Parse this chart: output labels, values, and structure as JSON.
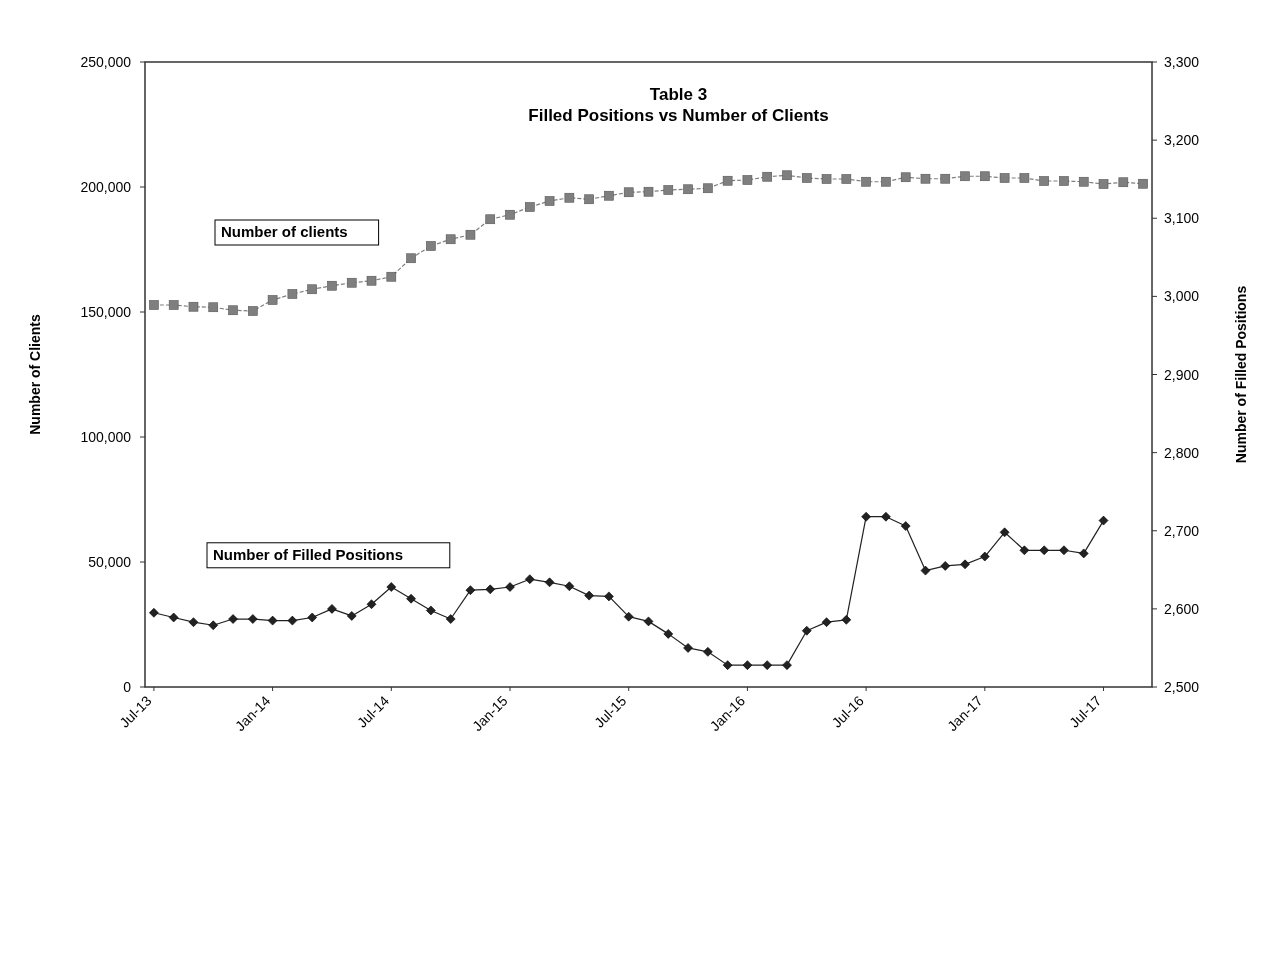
{
  "chart_data": {
    "type": "line",
    "title": "Table 3",
    "subtitle": "Filled Positions vs Number of Clients",
    "ylabel": "Number of Clients",
    "y2label": "Number of Filled Positions",
    "categories": [
      "Jul-13",
      null,
      null,
      null,
      null,
      null,
      "Jan-14",
      null,
      null,
      null,
      null,
      null,
      "Jul-14",
      null,
      null,
      null,
      null,
      null,
      "Jan-15",
      null,
      null,
      null,
      null,
      null,
      "Jul-15",
      null,
      null,
      null,
      null,
      null,
      "Jan-16",
      null,
      null,
      null,
      null,
      null,
      "Jul-16",
      null,
      null,
      null,
      null,
      null,
      "Jan-17",
      null,
      null,
      null,
      null,
      null,
      "Jul-17",
      null,
      null
    ],
    "series": [
      {
        "name": "Number of clients",
        "color": "#7f7f7f",
        "marker": "square",
        "line_style": "dashed",
        "values": [
          152800,
          152800,
          152100,
          151900,
          150700,
          150400,
          154800,
          157200,
          159100,
          160500,
          161700,
          162500,
          164100,
          171500,
          176400,
          179100,
          180900,
          187100,
          188900,
          192000,
          194400,
          195700,
          195100,
          196500,
          197900,
          198100,
          198800,
          199100,
          199500,
          202500,
          202800,
          204100,
          204700,
          203600,
          203200,
          203200,
          202100,
          202100,
          203900,
          203300,
          203300,
          204300,
          204300,
          203600,
          203600,
          202400,
          202400,
          202100,
          201200,
          201900,
          201300
        ]
      },
      {
        "name": "Number of Filled Positions",
        "color": "#222222",
        "marker": "diamond",
        "line_style": "solid",
        "axis": "y2",
        "values": [
          2595,
          2589,
          2583,
          2579,
          2587,
          2587,
          2585,
          2585,
          2589,
          2600,
          2591,
          2606,
          2628,
          2613,
          2598,
          2587,
          2624,
          2625,
          2628,
          2638,
          2634,
          2629,
          2617,
          2616,
          2590,
          2584,
          2568,
          2550,
          2545,
          2528,
          2528,
          2528,
          2528,
          2572,
          2583,
          2586,
          2718,
          2718,
          2706,
          2649,
          2655,
          2657,
          2667,
          2698,
          2675,
          2675,
          2675,
          2671,
          2713,
          null,
          null
        ]
      }
    ],
    "ylim": [
      0,
      250000
    ],
    "yticks": [
      {
        "value": 0,
        "label": "0"
      },
      {
        "value": 50000,
        "label": "50,000"
      },
      {
        "value": 100000,
        "label": "100,000"
      },
      {
        "value": 150000,
        "label": "150,000"
      },
      {
        "value": 200000,
        "label": "200,000"
      },
      {
        "value": 250000,
        "label": "250,000"
      }
    ],
    "y2lim": [
      2500,
      3300
    ],
    "y2ticks": [
      {
        "value": 2500,
        "label": "2,500"
      },
      {
        "value": 2600,
        "label": "2,600"
      },
      {
        "value": 2700,
        "label": "2,700"
      },
      {
        "value": 2800,
        "label": "2,800"
      },
      {
        "value": 2900,
        "label": "2,900"
      },
      {
        "value": 3000,
        "label": "3,000"
      },
      {
        "value": 3100,
        "label": "3,100"
      },
      {
        "value": 3200,
        "label": "3,200"
      },
      {
        "value": 3300,
        "label": "3,300"
      }
    ],
    "grid": false,
    "legend": false
  }
}
